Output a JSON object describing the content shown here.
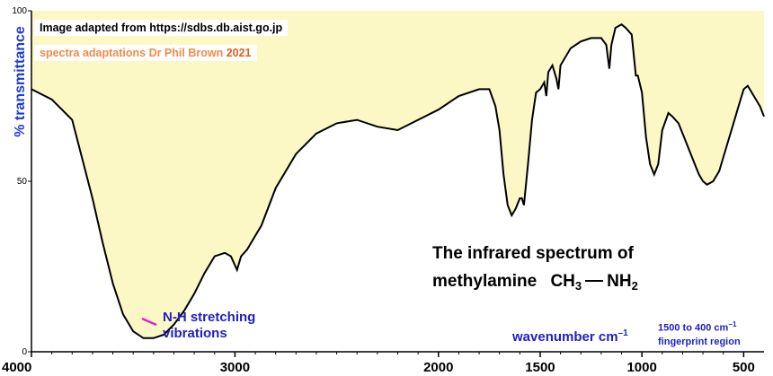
{
  "credits": {
    "line1": "Image adapted from https://sdbs.db.aist.go.jp",
    "line2": "spectra adaptations Dr Phil Brown",
    "year": "2021"
  },
  "title": {
    "line1": "The infrared spectrum of",
    "line2_prefix": "methylamine",
    "formula_left": "CH",
    "formula_left_sub": "3",
    "formula_right": "NH",
    "formula_right_sub": "2"
  },
  "annotation": {
    "line1": "N-H stretching",
    "line2": "vibrations"
  },
  "fingerprint": {
    "line1_prefix": "1500 to 400 cm",
    "line1_sup": "−1",
    "line2": "fingerprint region"
  },
  "xlabel": {
    "text": "wavenumber  cm",
    "sup": "–1"
  },
  "ylabel": "% transmittance",
  "colors": {
    "fill": "#fcf8c6",
    "line": "#000000",
    "annotation": "#1f1fbf",
    "ylabel": "#1f3bd1",
    "pointer": "#e020d0",
    "credit2": "#f08a4b"
  },
  "chart_data": {
    "type": "line",
    "xlim": [
      4000,
      400
    ],
    "ylim": [
      0,
      100
    ],
    "xticks": [
      4000,
      3000,
      2000,
      1500,
      1000,
      500
    ],
    "xtick_labels": [
      "4000",
      "3000",
      "2000",
      "1500",
      "1000",
      "500"
    ],
    "yticks": [
      0,
      50,
      100
    ],
    "ytick_labels": [
      "0",
      "50",
      "100"
    ],
    "grid": false,
    "fill_above_curve": true,
    "series": [
      {
        "x": [
          4000,
          3900,
          3800,
          3700,
          3650,
          3600,
          3550,
          3500,
          3450,
          3400,
          3350,
          3300,
          3250,
          3200,
          3150,
          3100,
          3050,
          3020,
          2990,
          2970,
          2940,
          2900,
          2870,
          2800,
          2700,
          2600,
          2500,
          2400,
          2300,
          2200,
          2100,
          2000,
          1900,
          1800,
          1750,
          1720,
          1700,
          1680,
          1660,
          1640,
          1620,
          1600,
          1590,
          1580,
          1560,
          1540,
          1520,
          1500,
          1480,
          1470,
          1460,
          1440,
          1420,
          1410,
          1400,
          1350,
          1300,
          1250,
          1200,
          1175,
          1160,
          1150,
          1130,
          1100,
          1080,
          1050,
          1040,
          1030,
          1020,
          1000,
          980,
          960,
          940,
          920,
          900,
          870,
          850,
          820,
          800,
          780,
          760,
          740,
          720,
          700,
          680,
          650,
          620,
          600,
          560,
          520,
          500,
          480,
          450,
          420,
          400
        ],
        "y": [
          77,
          74,
          68,
          45,
          32,
          20,
          11,
          6,
          4,
          4,
          5,
          8,
          12,
          17,
          23,
          28,
          29,
          28,
          24,
          28,
          30,
          34,
          37,
          48,
          58,
          64,
          67,
          68,
          66,
          65,
          68,
          71,
          75,
          77,
          77,
          72,
          65,
          52,
          43,
          40,
          42,
          45,
          45,
          43,
          55,
          68,
          76,
          77,
          79,
          75,
          82,
          84,
          80,
          77,
          84,
          89,
          91,
          92,
          92,
          90,
          83,
          90,
          95,
          96,
          95,
          93,
          87,
          81,
          81,
          76,
          63,
          55,
          52,
          55,
          65,
          70,
          69,
          67,
          64,
          61,
          58,
          55,
          52,
          50,
          49,
          50,
          53,
          57,
          65,
          73,
          77,
          78,
          75,
          72,
          69
        ]
      }
    ]
  }
}
